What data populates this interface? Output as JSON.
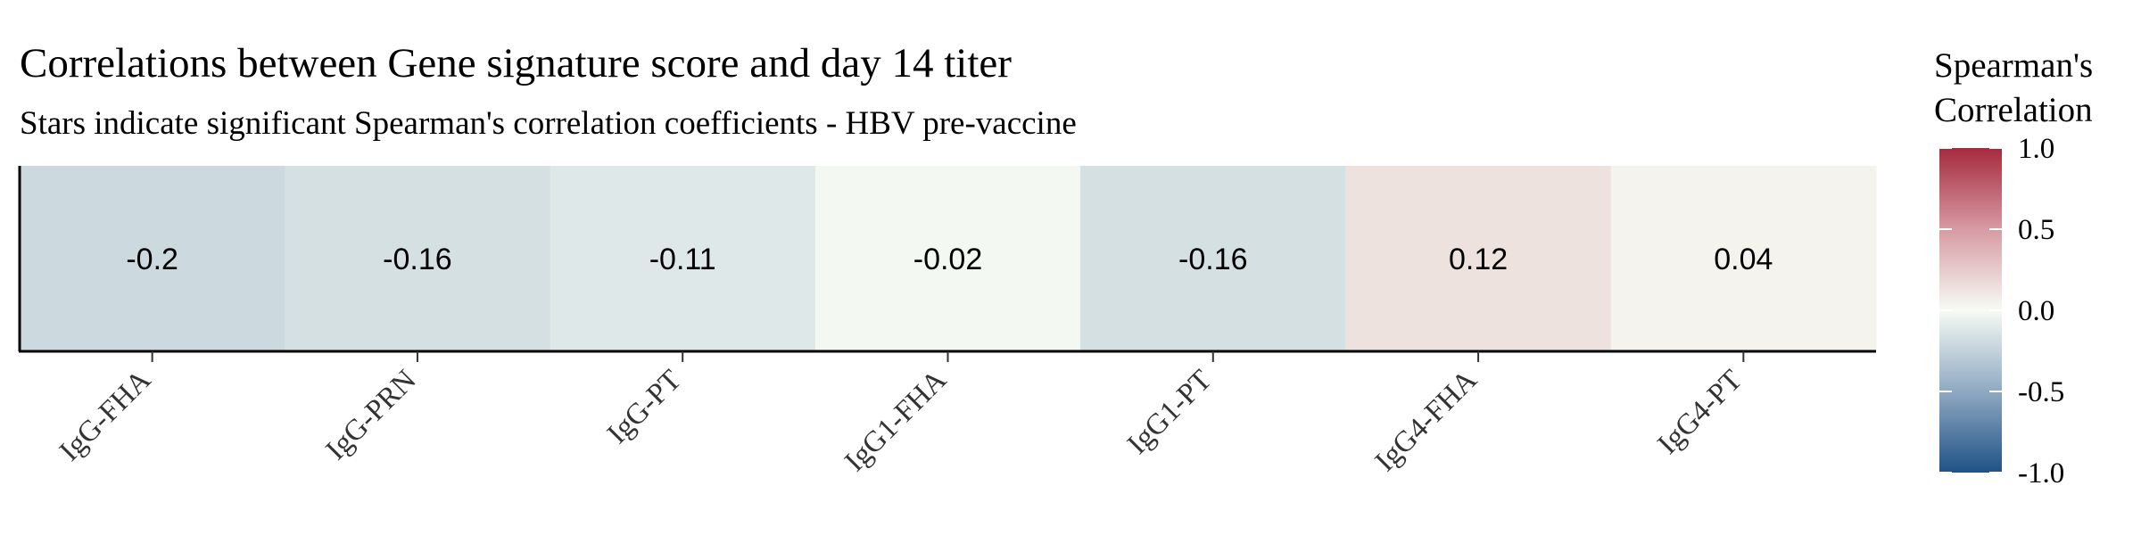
{
  "chart_data": {
    "type": "heatmap",
    "title": "Correlations between Gene signature score and day 14 titer",
    "subtitle": "Stars indicate significant Spearman's correlation coefficients - HBV pre-vaccine",
    "categories": [
      "IgG-FHA",
      "IgG-PRN",
      "IgG-PT",
      "IgG1-FHA",
      "IgG1-PT",
      "IgG4-FHA",
      "IgG4-PT"
    ],
    "values": [
      -0.2,
      -0.16,
      -0.11,
      -0.02,
      -0.16,
      0.12,
      0.04
    ],
    "value_labels": [
      "-0.2",
      "-0.16",
      "-0.11",
      "-0.02",
      "-0.16",
      "0.12",
      "0.04"
    ],
    "color_scale": {
      "min": -1.0,
      "mid": 0.0,
      "max": 1.0,
      "low_color": "#1f5286",
      "mid_color": "#f7fbf4",
      "high_color": "#a52a3e"
    },
    "legend": {
      "title_line1": "Spearman's",
      "title_line2": "Correlation",
      "ticks": [
        1.0,
        0.5,
        0.0,
        -0.5,
        -1.0
      ],
      "tick_labels": [
        "1.0",
        "0.5",
        "0.0",
        "-0.5",
        "-1.0"
      ],
      "placement": "right"
    }
  }
}
